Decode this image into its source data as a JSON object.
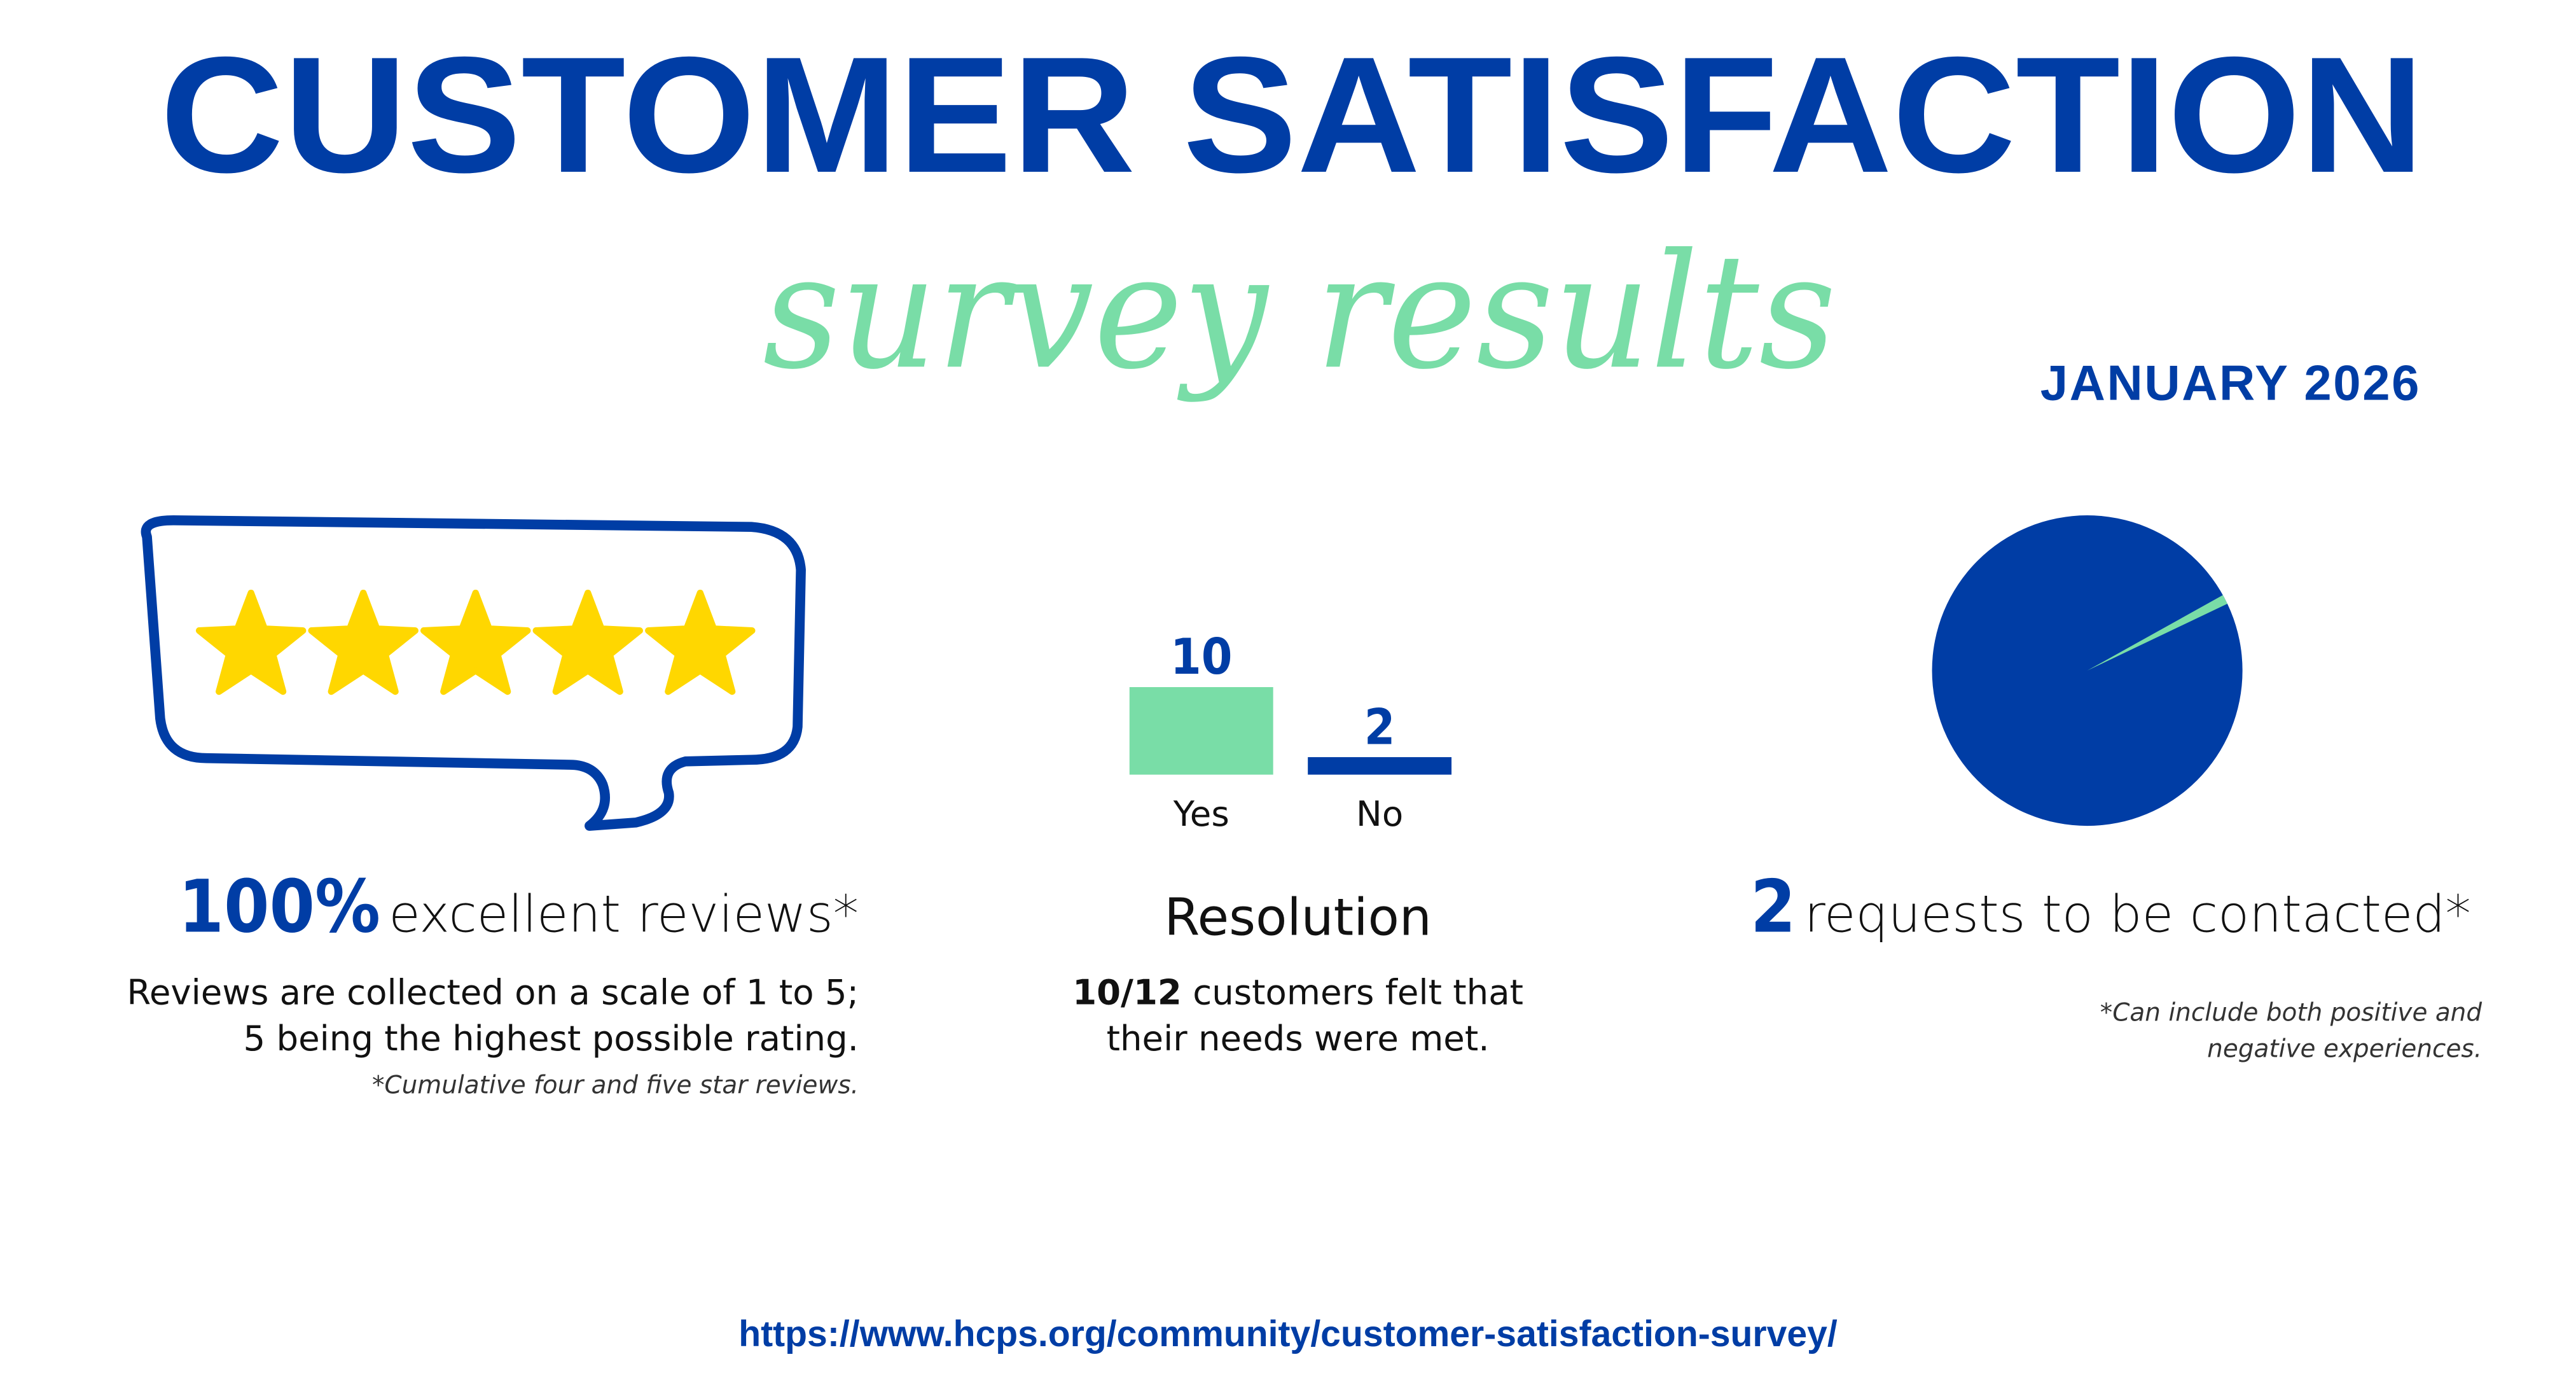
{
  "header": {
    "title": "CUSTOMER SATISFACTION",
    "subtitle": "survey results",
    "date": "JANUARY 2026"
  },
  "colors": {
    "blue": "#003DA5",
    "green": "#79DDA7",
    "star": "#FFD700"
  },
  "reviews": {
    "icon": "five-star-speech-bubble-icon",
    "stars": 5,
    "value": "100%",
    "label": "excellent reviews*",
    "line1": "Reviews are collected on a scale of 1 to 5;",
    "line2": "5 being the highest possible rating.",
    "note": "*Cumulative four and five star reviews."
  },
  "resolution": {
    "title": "Resolution",
    "fraction": "10/12",
    "line1_rest": "customers felt that",
    "line2": "their needs were met."
  },
  "contact": {
    "value": "2",
    "label": "requests to be contacted*",
    "note1": "*Can include both positive and",
    "note2": "negative experiences."
  },
  "chart_data": [
    {
      "type": "bar",
      "categories": [
        "Yes",
        "No"
      ],
      "values": [
        10,
        2
      ],
      "data_labels": [
        "10",
        "2"
      ],
      "colors": [
        "#79DDA7",
        "#003DA5"
      ]
    },
    {
      "type": "pie",
      "slices": [
        {
          "fraction": 0.99,
          "color": "#003DA5"
        },
        {
          "fraction": 0.01,
          "color": "#79DDA7"
        }
      ]
    }
  ],
  "footer": {
    "url": "https://www.hcps.org/community/customer-satisfaction-survey/"
  }
}
